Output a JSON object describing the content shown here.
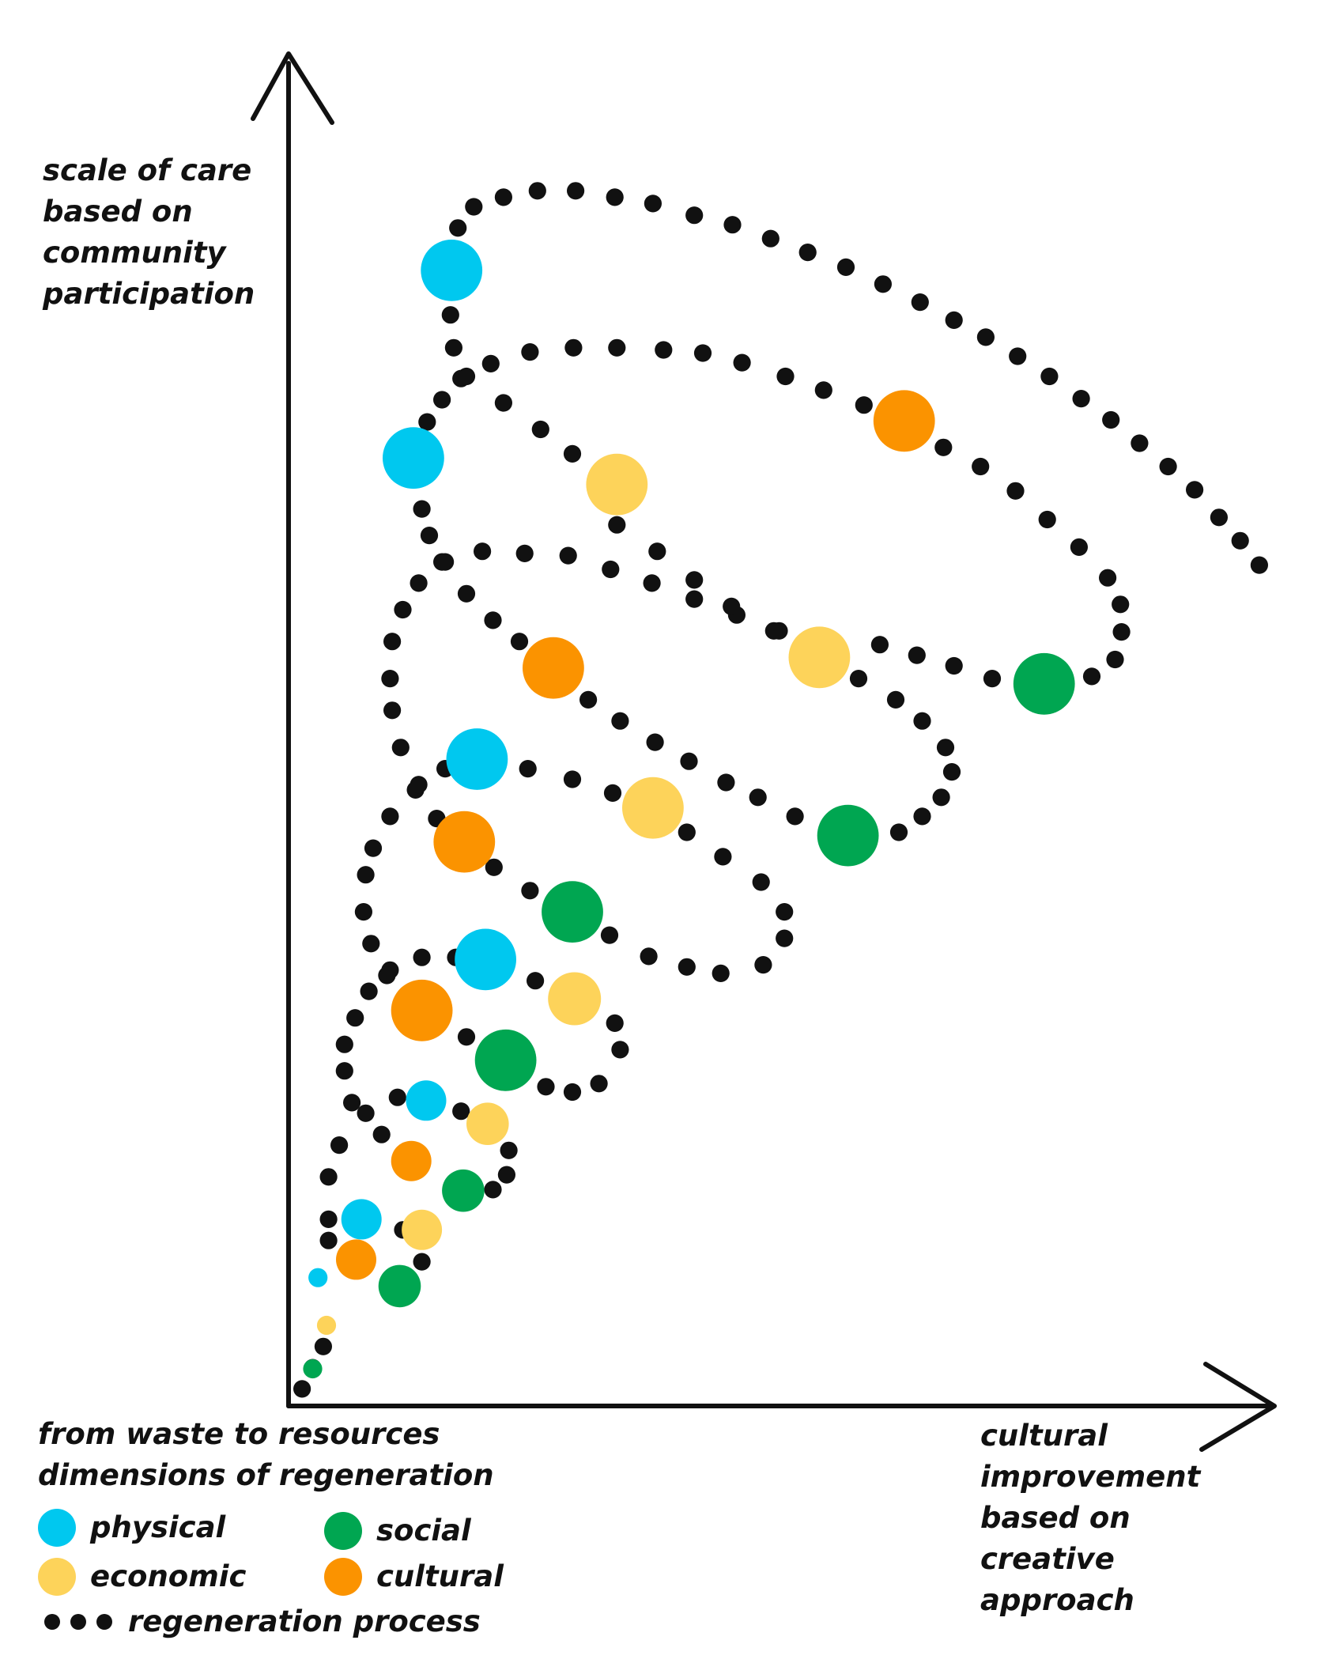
{
  "y_axis_label": [
    "scale of care",
    "based on",
    "community",
    "participation"
  ],
  "x_axis_label": [
    "cultural",
    "improvement",
    "based on",
    "creative",
    "approach"
  ],
  "legend": {
    "title_lines": [
      "from waste to resources",
      "dimensions of regeneration"
    ],
    "items": [
      {
        "key": "physical",
        "label": "physical",
        "color": "#00c8ef"
      },
      {
        "key": "social",
        "label": "social",
        "color": "#00a651"
      },
      {
        "key": "economic",
        "label": "economic",
        "color": "#fdd35a"
      },
      {
        "key": "cultural",
        "label": "cultural",
        "color": "#fb9300"
      }
    ],
    "process_label": "regeneration process"
  },
  "colors": {
    "physical": "#00c8ef",
    "economic": "#fdd35a",
    "social": "#00a651",
    "cultural": "#fb9300",
    "process": "#111111",
    "axis": "#111111"
  }
}
